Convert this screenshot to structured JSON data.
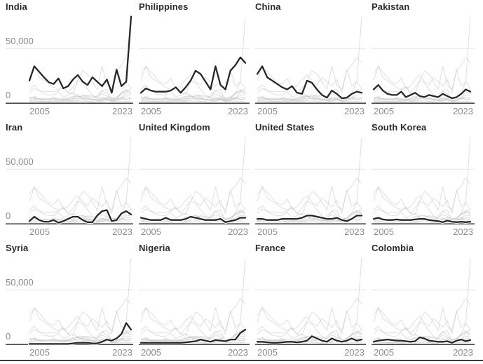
{
  "page": {
    "background_color": "#ffffff",
    "bottom_border_color": "#3c3c3c"
  },
  "chart_data": {
    "type": "line",
    "layout": "small-multiples 4 columns x 3 rows; each panel highlights one country in dark over all 12 countries drawn in light gray",
    "x": [
      2003,
      2004,
      2005,
      2006,
      2007,
      2008,
      2009,
      2010,
      2011,
      2012,
      2013,
      2014,
      2015,
      2016,
      2017,
      2018,
      2019,
      2020,
      2021,
      2022,
      2023,
      2024
    ],
    "x_tick_labels": [
      "2005",
      "2023"
    ],
    "y_axis": {
      "ylim": [
        0,
        80000
      ],
      "gridline_value": 50000,
      "ticks": [
        {
          "value": 50000,
          "label": "50,000"
        },
        {
          "value": 0,
          "label": "0"
        }
      ],
      "labels_on_first_column_only": true
    },
    "grid": "single horizontal gridline at 50,000; dark baseline axis at 0",
    "legend": "none",
    "series": [
      {
        "name": "India",
        "values": [
          21000,
          34000,
          29000,
          24000,
          19500,
          18000,
          23000,
          14000,
          16000,
          22000,
          26000,
          20000,
          17000,
          24000,
          20000,
          16000,
          22000,
          10000,
          31000,
          16000,
          20000,
          79000
        ]
      },
      {
        "name": "Philippines",
        "values": [
          10000,
          14000,
          12000,
          11000,
          11000,
          11000,
          12000,
          15000,
          10000,
          15000,
          21000,
          30000,
          27000,
          20000,
          13000,
          34000,
          17000,
          13000,
          30000,
          35000,
          42000,
          37000
        ]
      },
      {
        "name": "China",
        "values": [
          27000,
          34000,
          24000,
          21000,
          18000,
          15000,
          13000,
          16000,
          10000,
          9000,
          21000,
          19000,
          13000,
          8000,
          5500,
          12000,
          9000,
          5000,
          5500,
          9000,
          11000,
          10000
        ]
      },
      {
        "name": "Pakistan",
        "values": [
          13000,
          17000,
          12000,
          9000,
          8000,
          8000,
          11000,
          6000,
          8000,
          10000,
          7000,
          6000,
          8000,
          7000,
          6000,
          9000,
          7000,
          5000,
          6000,
          9000,
          13000,
          11000
        ]
      },
      {
        "name": "Iran",
        "values": [
          3000,
          7000,
          4000,
          2500,
          2500,
          4000,
          1500,
          3000,
          5000,
          7000,
          7000,
          4000,
          2000,
          2000,
          8000,
          12000,
          13000,
          3000,
          4000,
          10000,
          12000,
          9000
        ]
      },
      {
        "name": "United Kingdom",
        "values": [
          6000,
          5000,
          4000,
          4000,
          4000,
          6000,
          4000,
          4000,
          4000,
          5000,
          7000,
          6000,
          5000,
          4000,
          4000,
          4000,
          5000,
          2000,
          3000,
          4000,
          6000,
          6000
        ]
      },
      {
        "name": "United States",
        "values": [
          5000,
          5000,
          4000,
          4000,
          4000,
          5000,
          5000,
          5000,
          5000,
          6000,
          8000,
          8000,
          7000,
          6000,
          5000,
          5000,
          6000,
          4000,
          3000,
          5000,
          8000,
          8000
        ]
      },
      {
        "name": "South Korea",
        "values": [
          5000,
          6000,
          4500,
          4000,
          4000,
          4500,
          4000,
          4000,
          4000,
          4500,
          5000,
          5000,
          4000,
          3500,
          3000,
          2000,
          3500,
          2500,
          2000,
          2500,
          2000,
          2500
        ]
      },
      {
        "name": "Syria",
        "values": [
          1000,
          1000,
          1000,
          1000,
          1000,
          1000,
          1000,
          1000,
          1000,
          1500,
          2000,
          2000,
          2000,
          1500,
          1500,
          3000,
          5000,
          4000,
          6000,
          10000,
          20000,
          14000
        ]
      },
      {
        "name": "Nigeria",
        "values": [
          2000,
          2000,
          2000,
          2000,
          2000,
          2000,
          2000,
          2000,
          2000,
          2500,
          3000,
          3500,
          5000,
          4000,
          3000,
          4500,
          4000,
          3500,
          5000,
          5000,
          11000,
          14000
        ]
      },
      {
        "name": "France",
        "values": [
          3000,
          3000,
          2500,
          2000,
          2000,
          2500,
          3000,
          3000,
          2500,
          3000,
          4000,
          8000,
          6000,
          4000,
          3000,
          6000,
          4000,
          3000,
          4000,
          6000,
          4000,
          5000
        ]
      },
      {
        "name": "Colombia",
        "values": [
          3000,
          4000,
          4500,
          5000,
          4500,
          4000,
          4000,
          3500,
          3000,
          3500,
          7000,
          6000,
          4000,
          3500,
          3000,
          3000,
          3500,
          2000,
          4000,
          5000,
          3500,
          4500
        ]
      }
    ],
    "style": {
      "focus_line_color": "#262626",
      "focus_line_casing_color": "#ffffff",
      "background_line_color": "#c4c4c4",
      "gridline_color": "#e4e4e4",
      "axis_line_color": "#4a4a4a",
      "tick_label_color": "#8c8c8c",
      "title_color": "#2b2b2b"
    }
  }
}
